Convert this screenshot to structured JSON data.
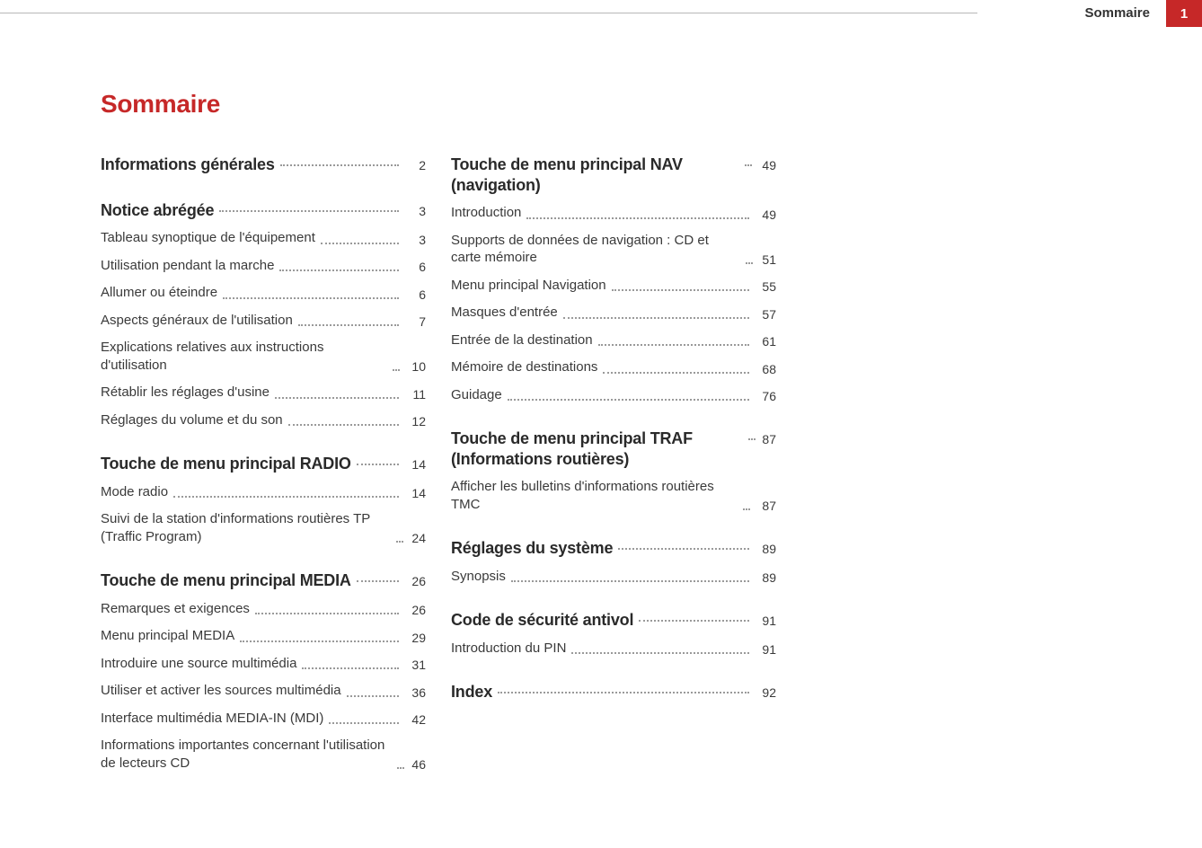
{
  "header": {
    "title": "Sommaire",
    "page_number": "1",
    "accent_color": "#c62828"
  },
  "main_title": "Sommaire",
  "col1": [
    {
      "type": "heading",
      "label": "Informations générales",
      "page": "2"
    },
    {
      "type": "heading",
      "label": "Notice abrégée",
      "page": "3"
    },
    {
      "type": "entry",
      "label": "Tableau synoptique de l'équipement",
      "page": "3"
    },
    {
      "type": "entry",
      "label": "Utilisation pendant la marche",
      "page": "6"
    },
    {
      "type": "entry",
      "label": "Allumer ou éteindre",
      "page": "6"
    },
    {
      "type": "entry",
      "label": "Aspects généraux de l'utilisation",
      "page": "7"
    },
    {
      "type": "entry",
      "label": "Explications relatives aux instructions d'utilisation",
      "page": "10"
    },
    {
      "type": "entry",
      "label": "Rétablir les réglages d'usine",
      "page": "11"
    },
    {
      "type": "entry",
      "label": "Réglages du volume et du son",
      "page": "12"
    },
    {
      "type": "heading",
      "label": "Touche de menu principal RADIO",
      "page": "14"
    },
    {
      "type": "entry",
      "label": "Mode radio",
      "page": "14"
    },
    {
      "type": "entry",
      "label": "Suivi de la station d'informations routières TP (Traffic Program)",
      "page": "24"
    },
    {
      "type": "heading",
      "label": "Touche de menu principal MEDIA",
      "page": "26"
    },
    {
      "type": "entry",
      "label": "Remarques et exigences",
      "page": "26"
    },
    {
      "type": "entry",
      "label": "Menu principal MEDIA",
      "page": "29"
    },
    {
      "type": "entry",
      "label": "Introduire une source multimédia",
      "page": "31"
    },
    {
      "type": "entry",
      "label": "Utiliser et activer les sources multimédia",
      "page": "36"
    },
    {
      "type": "entry",
      "label": "Interface multimédia MEDIA-IN (MDI)",
      "page": "42"
    },
    {
      "type": "entry",
      "label": "Informations importantes concernant l'utilisation de lecteurs CD",
      "page": "46"
    }
  ],
  "col2": [
    {
      "type": "heading",
      "label": "Touche de menu principal NAV (navigation)",
      "page": "49"
    },
    {
      "type": "entry",
      "label": "Introduction",
      "page": "49"
    },
    {
      "type": "entry",
      "label": "Supports de données de navigation : CD et carte mémoire",
      "page": "51"
    },
    {
      "type": "entry",
      "label": "Menu principal Navigation",
      "page": "55"
    },
    {
      "type": "entry",
      "label": "Masques d'entrée",
      "page": "57"
    },
    {
      "type": "entry",
      "label": "Entrée de la destination",
      "page": "61"
    },
    {
      "type": "entry",
      "label": "Mémoire de destinations",
      "page": "68"
    },
    {
      "type": "entry",
      "label": "Guidage",
      "page": "76"
    },
    {
      "type": "heading",
      "label": "Touche de menu principal TRAF (Informations routières)",
      "page": "87"
    },
    {
      "type": "entry",
      "label": "Afficher les bulletins d'informations routières TMC",
      "page": "87"
    },
    {
      "type": "heading",
      "label": "Réglages du système",
      "page": "89"
    },
    {
      "type": "entry",
      "label": "Synopsis",
      "page": "89"
    },
    {
      "type": "heading",
      "label": "Code de sécurité antivol",
      "page": "91"
    },
    {
      "type": "entry",
      "label": "Introduction du PIN",
      "page": "91"
    },
    {
      "type": "heading",
      "label": "Index",
      "page": "92"
    }
  ],
  "style": {
    "body_text_color": "#3a3a3a",
    "heading_color": "#2a2a2a",
    "accent_color": "#c62828",
    "background_color": "#ffffff",
    "dot_leader_color": "#9a9a9a",
    "main_title_fontsize": 28,
    "heading_fontsize": 18,
    "entry_fontsize": 15
  }
}
